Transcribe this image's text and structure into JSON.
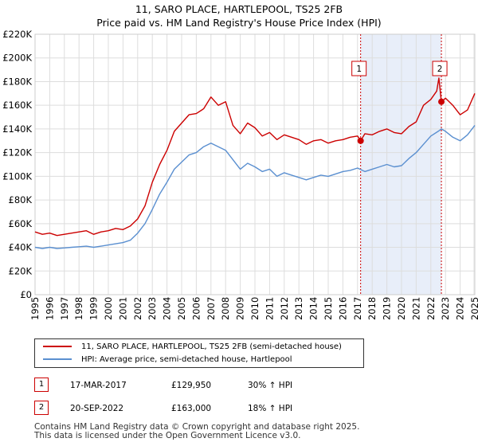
{
  "title_line1": "11, SARO PLACE, HARTLEPOOL, TS25 2FB",
  "title_line2": "Price paid vs. HM Land Registry's House Price Index (HPI)",
  "chart_data": {
    "type": "line",
    "ylim": [
      0,
      220000
    ],
    "xlim": [
      1995,
      2025
    ],
    "y_ticks": [
      0,
      20000,
      40000,
      60000,
      80000,
      100000,
      120000,
      140000,
      160000,
      180000,
      200000,
      220000
    ],
    "y_tick_labels": [
      "£0",
      "£20K",
      "£40K",
      "£60K",
      "£80K",
      "£100K",
      "£120K",
      "£140K",
      "£160K",
      "£180K",
      "£200K",
      "£220K"
    ],
    "x_tick_labels": [
      "1995",
      "1996",
      "1997",
      "1998",
      "1999",
      "2000",
      "2001",
      "2002",
      "2003",
      "2004",
      "2005",
      "2006",
      "2007",
      "2008",
      "2009",
      "2010",
      "2011",
      "2012",
      "2013",
      "2014",
      "2015",
      "2016",
      "2017",
      "2018",
      "2019",
      "2020",
      "2021",
      "2022",
      "2023",
      "2024",
      "2025"
    ],
    "grid": true,
    "shade_region": [
      2017.21,
      2022.72
    ],
    "series": [
      {
        "name": "11, SARO PLACE, HARTLEPOOL, TS25 2FB (semi-detached house)",
        "color": "#cc0000",
        "x": [
          1995,
          1995.5,
          1996,
          1996.5,
          1997,
          1997.5,
          1998,
          1998.5,
          1999,
          1999.5,
          2000,
          2000.5,
          2001,
          2001.5,
          2002,
          2002.5,
          2003,
          2003.5,
          2004,
          2004.5,
          2005,
          2005.5,
          2006,
          2006.5,
          2007,
          2007.5,
          2008,
          2008.5,
          2009,
          2009.5,
          2010,
          2010.5,
          2011,
          2011.5,
          2012,
          2012.5,
          2013,
          2013.5,
          2014,
          2014.5,
          2015,
          2015.5,
          2016,
          2016.5,
          2017,
          2017.21,
          2017.5,
          2018,
          2018.5,
          2019,
          2019.5,
          2020,
          2020.5,
          2021,
          2021.5,
          2022,
          2022.4,
          2022.55,
          2022.72,
          2023,
          2023.5,
          2024,
          2024.5,
          2025
        ],
        "values": [
          53000,
          51000,
          52000,
          50000,
          51000,
          52000,
          53000,
          54000,
          51000,
          53000,
          54000,
          56000,
          55000,
          58000,
          64000,
          75000,
          95000,
          110000,
          122000,
          138000,
          145000,
          152000,
          153000,
          157000,
          167000,
          160000,
          163000,
          143000,
          136000,
          145000,
          141000,
          134000,
          137000,
          131000,
          135000,
          133000,
          131000,
          127000,
          130000,
          131000,
          128000,
          130000,
          131000,
          133000,
          134000,
          129950,
          136000,
          135000,
          138000,
          140000,
          137000,
          136000,
          142000,
          146000,
          160000,
          165000,
          172000,
          183000,
          163000,
          166000,
          160000,
          152000,
          156000,
          170000
        ]
      },
      {
        "name": "HPI: Average price, semi-detached house, Hartlepool",
        "color": "#5a8fd0",
        "x": [
          1995,
          1995.5,
          1996,
          1996.5,
          1997,
          1997.5,
          1998,
          1998.5,
          1999,
          1999.5,
          2000,
          2000.5,
          2001,
          2001.5,
          2002,
          2002.5,
          2003,
          2003.5,
          2004,
          2004.5,
          2005,
          2005.5,
          2006,
          2006.5,
          2007,
          2007.5,
          2008,
          2008.5,
          2009,
          2009.5,
          2010,
          2010.5,
          2011,
          2011.5,
          2012,
          2012.5,
          2013,
          2013.5,
          2014,
          2014.5,
          2015,
          2015.5,
          2016,
          2016.5,
          2017,
          2017.5,
          2018,
          2018.5,
          2019,
          2019.5,
          2020,
          2020.5,
          2021,
          2021.5,
          2022,
          2022.5,
          2022.72,
          2023,
          2023.5,
          2024,
          2024.5,
          2025
        ],
        "values": [
          40000,
          39000,
          40000,
          39000,
          39500,
          40000,
          40500,
          41000,
          40000,
          41000,
          42000,
          43000,
          44000,
          46000,
          52000,
          60000,
          72000,
          85000,
          95000,
          106000,
          112000,
          118000,
          120000,
          125000,
          128000,
          125000,
          122000,
          114000,
          106000,
          111000,
          108000,
          104000,
          106000,
          100000,
          103000,
          101000,
          99000,
          97000,
          99000,
          101000,
          100000,
          102000,
          104000,
          105000,
          107000,
          104000,
          106000,
          108000,
          110000,
          108000,
          109000,
          115000,
          120000,
          127000,
          134000,
          138000,
          140000,
          138000,
          133000,
          130000,
          135000,
          143000
        ]
      }
    ],
    "annotations": [
      {
        "label": "1",
        "x": 2017.21,
        "value": 129950
      },
      {
        "label": "2",
        "x": 2022.72,
        "value": 163000
      }
    ]
  },
  "legend": {
    "series1_label": "11, SARO PLACE, HARTLEPOOL, TS25 2FB (semi-detached house)",
    "series2_label": "HPI: Average price, semi-detached house, Hartlepool",
    "series1_color": "#cc0000",
    "series2_color": "#5a8fd0"
  },
  "sales": [
    {
      "num": "1",
      "date": "17-MAR-2017",
      "price": "£129,950",
      "hpi": "30% ↑ HPI"
    },
    {
      "num": "2",
      "date": "20-SEP-2022",
      "price": "£163,000",
      "hpi": "18% ↑ HPI"
    }
  ],
  "footer": {
    "line1": "Contains HM Land Registry data © Crown copyright and database right 2025.",
    "line2": "This data is licensed under the Open Government Licence v3.0."
  }
}
